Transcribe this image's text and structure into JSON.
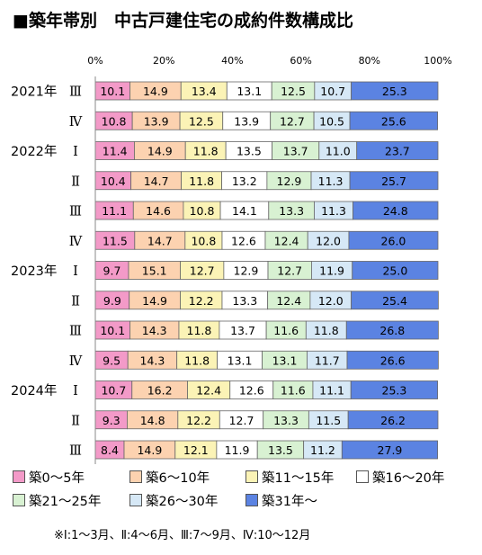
{
  "title": "■築年帯別　中古戸建住宅の成約件数構成比",
  "note": "※Ⅰ:1～3月、Ⅱ:4～6月、Ⅲ:7～9月、Ⅳ:10～12月",
  "chart_data": {
    "type": "bar",
    "orientation": "horizontal",
    "stacked": true,
    "x_unit": "%",
    "xlim": [
      0,
      100
    ],
    "x_ticks": [
      "0%",
      "20%",
      "40%",
      "60%",
      "80%",
      "100%"
    ],
    "grid": false,
    "legend_position": "bottom",
    "categories": [
      {
        "year": "2021年",
        "quarter": "Ⅲ"
      },
      {
        "year": "",
        "quarter": "Ⅳ"
      },
      {
        "year": "2022年",
        "quarter": "Ⅰ"
      },
      {
        "year": "",
        "quarter": "Ⅱ"
      },
      {
        "year": "",
        "quarter": "Ⅲ"
      },
      {
        "year": "",
        "quarter": "Ⅳ"
      },
      {
        "year": "2023年",
        "quarter": "Ⅰ"
      },
      {
        "year": "",
        "quarter": "Ⅱ"
      },
      {
        "year": "",
        "quarter": "Ⅲ"
      },
      {
        "year": "",
        "quarter": "Ⅳ"
      },
      {
        "year": "2024年",
        "quarter": "Ⅰ"
      },
      {
        "year": "",
        "quarter": "Ⅱ"
      },
      {
        "year": "",
        "quarter": "Ⅲ"
      }
    ],
    "series": [
      {
        "name": "築0～5年",
        "color": "#f39ac8",
        "values": [
          10.1,
          10.8,
          11.4,
          10.4,
          11.1,
          11.5,
          9.7,
          9.9,
          10.1,
          9.5,
          10.7,
          9.3,
          8.4
        ]
      },
      {
        "name": "築6～10年",
        "color": "#fcd2b0",
        "values": [
          14.9,
          13.9,
          14.9,
          14.7,
          14.6,
          14.7,
          15.1,
          14.9,
          14.3,
          14.3,
          16.2,
          14.8,
          14.9
        ]
      },
      {
        "name": "築11～15年",
        "color": "#fbf3b6",
        "values": [
          13.4,
          12.5,
          11.8,
          11.8,
          10.8,
          10.8,
          12.7,
          12.2,
          11.8,
          11.8,
          12.4,
          12.2,
          12.1
        ]
      },
      {
        "name": "築16～20年",
        "color": "#ffffff",
        "values": [
          13.1,
          13.9,
          13.5,
          13.2,
          14.1,
          12.6,
          12.9,
          13.3,
          13.7,
          13.1,
          12.6,
          12.7,
          11.9
        ]
      },
      {
        "name": "築21～25年",
        "color": "#d8f1d2",
        "values": [
          12.5,
          12.7,
          13.7,
          12.9,
          13.3,
          12.4,
          12.7,
          12.4,
          11.6,
          13.1,
          11.6,
          13.3,
          13.5
        ]
      },
      {
        "name": "築26～30年",
        "color": "#d6e8f6",
        "values": [
          10.7,
          10.5,
          11.0,
          11.3,
          11.3,
          12.0,
          11.9,
          12.0,
          11.8,
          11.7,
          11.1,
          11.5,
          11.2
        ]
      },
      {
        "name": "築31年～",
        "color": "#5b83e2",
        "values": [
          25.3,
          25.6,
          23.7,
          25.7,
          24.8,
          26.0,
          25.0,
          25.4,
          26.8,
          26.6,
          25.3,
          26.2,
          27.9
        ]
      }
    ]
  }
}
